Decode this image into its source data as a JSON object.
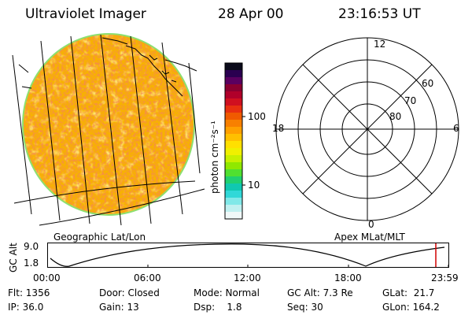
{
  "header": {
    "instrument": "Ultraviolet Imager",
    "date": "28 Apr 00",
    "time": "23:16:53 UT"
  },
  "colorbar": {
    "unit_label": "photon cm⁻²s⁻¹",
    "ticks": [
      "100",
      "10"
    ],
    "colors": [
      "#0a0a1a",
      "#2a0050",
      "#5a0060",
      "#8a0030",
      "#b0002a",
      "#d01020",
      "#e83010",
      "#f05a00",
      "#f88000",
      "#ffa000",
      "#ffc000",
      "#ffe000",
      "#f0f000",
      "#c8f000",
      "#90e800",
      "#50e030",
      "#20d070",
      "#10c8b0",
      "#30d8d8",
      "#80e8e8",
      "#c0f0f0",
      "#f0f8f8"
    ]
  },
  "map": {
    "label": "Geographic Lat/Lon",
    "disk_colors": {
      "base": "#f7b200",
      "hot": "#e63a1a",
      "rim": "#8ce070"
    }
  },
  "polar": {
    "label": "Apex MLat/MLT",
    "mlt_labels": {
      "top": "12",
      "left": "18",
      "right": "6",
      "bottom": "0"
    },
    "lat_labels": [
      "60",
      "70",
      "80"
    ]
  },
  "timeline": {
    "axis_label": "GC Alt",
    "y_ticks": [
      "9.0",
      "1.8"
    ],
    "x_ticks": [
      "00:00",
      "06:00",
      "12:00",
      "18:00",
      "23:59"
    ],
    "marker_color": "#d00000"
  },
  "info": {
    "flt": "Flt: 1356",
    "ip": "IP: 36.0",
    "door": "Door: Closed",
    "gain": "Gain: 13",
    "mode": "Mode: Normal",
    "dsp": "Dsp:    1.8",
    "gcalt": "GC Alt: 7.3 Re",
    "seq": "Seq: 30",
    "glat": "GLat:  21.7",
    "glon": "GLon: 164.2"
  }
}
